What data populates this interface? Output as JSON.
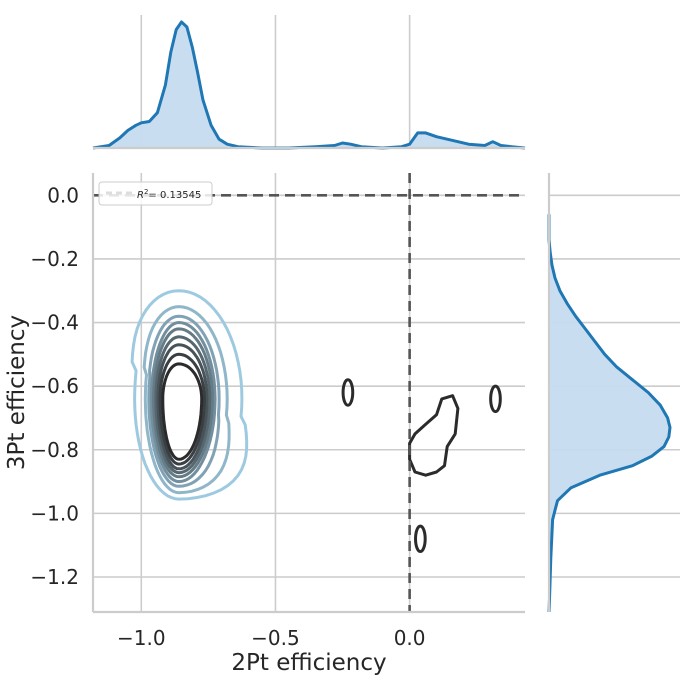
{
  "chart_data": {
    "type": "kde-jointplot",
    "xlabel": "2Pt efficiency",
    "ylabel": "3Pt efficiency",
    "xlim": [
      -1.18,
      0.43
    ],
    "ylim": [
      -1.31,
      0.07
    ],
    "xticks": [
      -1.0,
      -0.5,
      0.0
    ],
    "xtick_labels": [
      "−1.0",
      "−0.5",
      "0.0"
    ],
    "yticks": [
      0.0,
      -0.2,
      -0.4,
      -0.6,
      -0.8,
      -1.0,
      -1.2
    ],
    "ytick_labels": [
      "0.0",
      "−0.2",
      "−0.4",
      "−0.6",
      "−0.8",
      "−1.0",
      "−1.2"
    ],
    "grid": true,
    "legend": {
      "placement": "top-left",
      "label": "= 0.13545",
      "r2_value": 0.13545
    },
    "reference_lines": {
      "x": 0.0,
      "y": 0.0,
      "style": "dashed"
    },
    "colors": {
      "contour_dark": "#2b2b2b",
      "contour_light": "#9ecae1",
      "marginal": "#1f77b4",
      "marginal_fill": "#c6dbef",
      "grid": "#cccccc"
    },
    "main_contours": {
      "center": [
        -0.86,
        -0.64
      ],
      "levels": [
        {
          "half_width": [
            0.06,
            0.085
          ],
          "height": [
            -0.53,
            -0.83
          ],
          "right_lobe": 0
        },
        {
          "half_width": [
            0.07,
            0.095
          ],
          "height": [
            -0.5,
            -0.845
          ],
          "right_lobe": 0
        },
        {
          "half_width": [
            0.078,
            0.105
          ],
          "height": [
            -0.47,
            -0.86
          ],
          "right_lobe": 0
        },
        {
          "half_width": [
            0.086,
            0.115
          ],
          "height": [
            -0.445,
            -0.872
          ],
          "right_lobe": 0
        },
        {
          "half_width": [
            0.094,
            0.125
          ],
          "height": [
            -0.42,
            -0.885
          ],
          "right_lobe": 0
        },
        {
          "half_width": [
            0.102,
            0.135
          ],
          "height": [
            -0.4,
            -0.9
          ],
          "right_lobe": 0
        },
        {
          "half_width": [
            0.112,
            0.15
          ],
          "height": [
            -0.38,
            -0.915
          ],
          "right_lobe": 0.02
        },
        {
          "half_width": [
            0.125,
            0.18
          ],
          "height": [
            -0.35,
            -0.935
          ],
          "right_lobe": 0.06
        },
        {
          "half_width": [
            0.165,
            0.235
          ],
          "height": [
            -0.3,
            -0.955
          ],
          "right_lobe": 0.1
        }
      ],
      "outliers": [
        {
          "center": [
            -0.23,
            -0.62
          ],
          "radius": [
            0.018,
            0.04
          ]
        },
        {
          "center": [
            0.32,
            -0.64
          ],
          "radius": [
            0.018,
            0.04
          ]
        },
        {
          "center": [
            0.04,
            -1.08
          ],
          "radius": [
            0.018,
            0.04
          ]
        }
      ],
      "right_blob": [
        [
          0.0,
          -0.78
        ],
        [
          0.02,
          -0.75
        ],
        [
          0.06,
          -0.72
        ],
        [
          0.1,
          -0.69
        ],
        [
          0.12,
          -0.64
        ],
        [
          0.16,
          -0.63
        ],
        [
          0.18,
          -0.67
        ],
        [
          0.17,
          -0.75
        ],
        [
          0.14,
          -0.79
        ],
        [
          0.13,
          -0.85
        ],
        [
          0.1,
          -0.87
        ],
        [
          0.06,
          -0.88
        ],
        [
          0.02,
          -0.87
        ],
        [
          0.0,
          -0.83
        ]
      ]
    },
    "marginal_x": {
      "x": [
        -1.18,
        -1.12,
        -1.08,
        -1.05,
        -1.02,
        -1.0,
        -0.97,
        -0.94,
        -0.91,
        -0.89,
        -0.87,
        -0.85,
        -0.83,
        -0.81,
        -0.79,
        -0.77,
        -0.74,
        -0.71,
        -0.68,
        -0.64,
        -0.55,
        -0.45,
        -0.35,
        -0.28,
        -0.25,
        -0.22,
        -0.18,
        -0.1,
        -0.03,
        0.0,
        0.03,
        0.06,
        0.1,
        0.16,
        0.22,
        0.28,
        0.31,
        0.34,
        0.38,
        0.43
      ],
      "density": [
        0.0,
        0.02,
        0.08,
        0.14,
        0.18,
        0.2,
        0.21,
        0.28,
        0.5,
        0.76,
        0.94,
        1.0,
        0.96,
        0.8,
        0.6,
        0.38,
        0.18,
        0.07,
        0.03,
        0.01,
        0.0,
        0.0,
        0.01,
        0.02,
        0.04,
        0.03,
        0.01,
        0.0,
        0.01,
        0.03,
        0.12,
        0.12,
        0.09,
        0.06,
        0.03,
        0.02,
        0.05,
        0.02,
        0.01,
        0.0
      ]
    },
    "marginal_y": {
      "y": [
        -1.31,
        -1.26,
        -1.2,
        -1.14,
        -1.1,
        -1.06,
        -1.02,
        -0.99,
        -0.96,
        -0.92,
        -0.88,
        -0.85,
        -0.82,
        -0.79,
        -0.76,
        -0.73,
        -0.7,
        -0.66,
        -0.62,
        -0.58,
        -0.54,
        -0.5,
        -0.46,
        -0.42,
        -0.38,
        -0.34,
        -0.3,
        -0.26,
        -0.22,
        -0.18,
        -0.14,
        -0.1,
        -0.06
      ],
      "density": [
        0.0,
        0.005,
        0.01,
        0.015,
        0.02,
        0.025,
        0.03,
        0.05,
        0.07,
        0.18,
        0.42,
        0.69,
        0.85,
        0.95,
        0.99,
        1.0,
        0.98,
        0.92,
        0.82,
        0.69,
        0.56,
        0.46,
        0.38,
        0.3,
        0.22,
        0.15,
        0.09,
        0.05,
        0.025,
        0.01,
        0.0,
        0.0,
        0.0
      ]
    }
  }
}
